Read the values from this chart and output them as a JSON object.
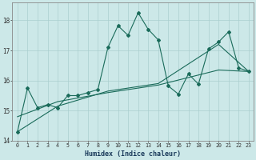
{
  "bg_color": "#cce8e8",
  "line_color": "#1a6b5a",
  "grid_color": "#aacfcf",
  "xlim": [
    -0.5,
    23.5
  ],
  "ylim": [
    14.0,
    18.6
  ],
  "yticks": [
    14,
    15,
    16,
    17,
    18
  ],
  "xticks": [
    0,
    1,
    2,
    3,
    4,
    5,
    6,
    7,
    8,
    9,
    10,
    11,
    12,
    13,
    14,
    15,
    16,
    17,
    18,
    19,
    20,
    21,
    22,
    23
  ],
  "xlabel": "Humidex (Indice chaleur)",
  "jagged_x": [
    0,
    1,
    2,
    3,
    4,
    5,
    6,
    7,
    8,
    9,
    10,
    11,
    12,
    13,
    14,
    15,
    16,
    17,
    18,
    19,
    20,
    21,
    22,
    23
  ],
  "jagged_y": [
    14.3,
    15.75,
    15.1,
    15.2,
    15.1,
    15.5,
    15.5,
    15.6,
    15.7,
    17.1,
    17.82,
    17.5,
    18.25,
    17.7,
    17.35,
    15.82,
    15.55,
    16.22,
    15.88,
    17.05,
    17.28,
    17.62,
    16.42,
    16.3
  ],
  "smooth1_x": [
    0,
    4,
    9,
    14,
    20,
    23
  ],
  "smooth1_y": [
    14.3,
    15.15,
    15.65,
    15.9,
    17.2,
    16.3
  ],
  "smooth2_x": [
    0,
    4,
    9,
    14,
    20,
    23
  ],
  "smooth2_y": [
    14.8,
    15.3,
    15.6,
    15.85,
    16.35,
    16.3
  ]
}
